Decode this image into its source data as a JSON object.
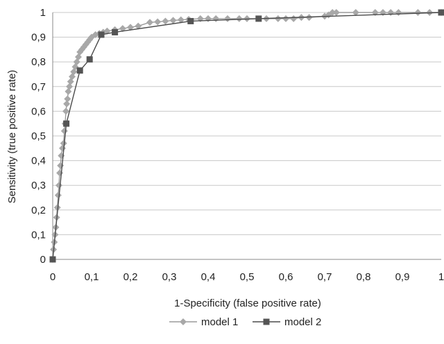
{
  "chart_data": {
    "type": "line",
    "xlabel": "1-Specificity (false positive rate)",
    "ylabel": "Sensitivity (true positive rate)",
    "xlim": [
      0,
      1
    ],
    "ylim": [
      0,
      1
    ],
    "grid": true,
    "legend_position": "bottom",
    "x_ticks": [
      "0",
      "0,1",
      "0,2",
      "0,3",
      "0,4",
      "0,5",
      "0,6",
      "0,7",
      "0,8",
      "0,9",
      "1"
    ],
    "y_ticks": [
      "0",
      "0,1",
      "0,2",
      "0,3",
      "0,4",
      "0,5",
      "0,6",
      "0,7",
      "0,8",
      "0,9",
      "1"
    ],
    "series": [
      {
        "name": "model 1",
        "marker": "diamond",
        "color": "#a8a8a8",
        "x": [
          0,
          0.002,
          0.004,
          0.006,
          0.008,
          0.01,
          0.012,
          0.014,
          0.016,
          0.018,
          0.02,
          0.022,
          0.025,
          0.028,
          0.03,
          0.032,
          0.034,
          0.036,
          0.038,
          0.04,
          0.043,
          0.046,
          0.05,
          0.054,
          0.058,
          0.062,
          0.066,
          0.07,
          0.075,
          0.08,
          0.085,
          0.09,
          0.095,
          0.1,
          0.11,
          0.12,
          0.13,
          0.14,
          0.16,
          0.18,
          0.2,
          0.22,
          0.25,
          0.27,
          0.29,
          0.31,
          0.33,
          0.35,
          0.38,
          0.4,
          0.42,
          0.45,
          0.48,
          0.5,
          0.55,
          0.58,
          0.6,
          0.62,
          0.64,
          0.66,
          0.7,
          0.71,
          0.72,
          0.73,
          0.78,
          0.83,
          0.85,
          0.87,
          0.89,
          0.94,
          0.97,
          1.0
        ],
        "y": [
          0,
          0.04,
          0.07,
          0.1,
          0.13,
          0.17,
          0.21,
          0.26,
          0.3,
          0.35,
          0.38,
          0.42,
          0.45,
          0.47,
          0.52,
          0.55,
          0.6,
          0.63,
          0.65,
          0.68,
          0.7,
          0.72,
          0.74,
          0.76,
          0.78,
          0.8,
          0.82,
          0.84,
          0.85,
          0.86,
          0.87,
          0.88,
          0.89,
          0.9,
          0.91,
          0.915,
          0.92,
          0.925,
          0.93,
          0.935,
          0.94,
          0.945,
          0.96,
          0.962,
          0.965,
          0.968,
          0.97,
          0.972,
          0.975,
          0.975,
          0.975,
          0.975,
          0.975,
          0.975,
          0.975,
          0.975,
          0.975,
          0.975,
          0.98,
          0.98,
          0.985,
          0.99,
          1.0,
          1.0,
          1.0,
          1.0,
          1.0,
          1.0,
          1.0,
          1.0,
          1.0,
          1.0
        ]
      },
      {
        "name": "model 2",
        "marker": "square",
        "color": "#555555",
        "x": [
          0,
          0.035,
          0.07,
          0.095,
          0.125,
          0.16,
          0.355,
          0.53,
          1.0
        ],
        "y": [
          0,
          0.55,
          0.765,
          0.81,
          0.91,
          0.92,
          0.965,
          0.975,
          1.0
        ]
      }
    ]
  }
}
